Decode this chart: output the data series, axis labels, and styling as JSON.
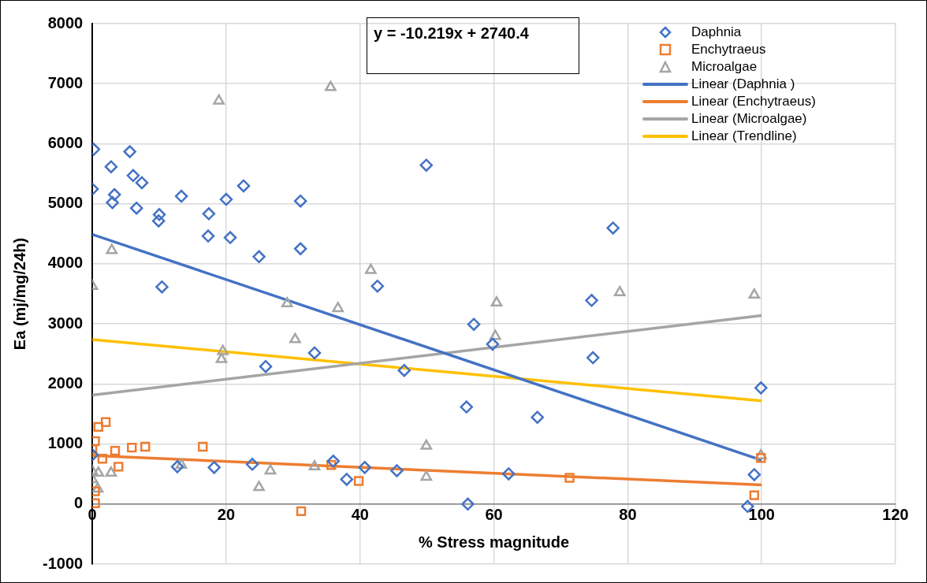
{
  "chart_data": {
    "type": "scatter",
    "xlabel": "% Stress magnitude",
    "ylabel": "Ea (mj/mg/24h)",
    "xlim": [
      0,
      120
    ],
    "xticks": [
      0,
      20,
      40,
      60,
      80,
      100,
      120
    ],
    "ylim": [
      -1000,
      8000
    ],
    "yticks": [
      -1000,
      0,
      1000,
      2000,
      3000,
      4000,
      5000,
      6000,
      7000,
      8000
    ],
    "grid": true,
    "legend": "top right",
    "annotations": [
      "y = -10.219x + 2740.4"
    ],
    "series": [
      {
        "name": "Daphnia",
        "marker": "diamond",
        "color": "#4472c4",
        "x": [
          0.2,
          0,
          2.8,
          3.3,
          3,
          5.6,
          6.1,
          7.4,
          6.6,
          10,
          9.9,
          10.4,
          13.3,
          17.4,
          17.3,
          20,
          20.6,
          22.6,
          24.9,
          31.1,
          31.1,
          25.9,
          33.2,
          49.9,
          42.6,
          46.6,
          57,
          59.8,
          55.9,
          66.5,
          62.2,
          56.1,
          45.5,
          40.7,
          38,
          36,
          12.7,
          18.2,
          23.9,
          0,
          77.8,
          74.6,
          74.8,
          99.9,
          98.9,
          97.9
        ],
        "values": [
          5907,
          5245,
          5616,
          5152,
          5020,
          5868,
          5470,
          5351,
          4927,
          4821,
          4715,
          3616,
          5126,
          4834,
          4464,
          5073,
          4437,
          5298,
          4119,
          5046,
          4251,
          2291,
          2517,
          5642,
          3629,
          2225,
          2993,
          2662,
          1616,
          1444,
          503,
          0,
          556,
          609,
          411,
          715,
          622,
          609,
          662,
          820,
          4596,
          3391,
          2437,
          1934,
          490,
          -40
        ]
      },
      {
        "name": "Enchytraeus",
        "marker": "square",
        "color": "#ed7d31",
        "x": [
          0.9,
          2,
          0.4,
          0,
          3.4,
          5.9,
          7.9,
          16.5,
          1.5,
          3.9,
          0.4,
          0.4,
          31.2,
          35.7,
          39.8,
          71.3,
          99.9,
          98.9
        ],
        "values": [
          1285,
          1364,
          1046,
          914,
          887,
          940,
          954,
          954,
          755,
          622,
          212,
          13,
          -119,
          649,
          384,
          437,
          768,
          146
        ]
      },
      {
        "name": "Microalgae",
        "marker": "triangle",
        "color": "#a5a5a5",
        "x": [
          0,
          2.9,
          18.9,
          35.6,
          41.6,
          36.7,
          30.3,
          60.4,
          60.2,
          49.9,
          49.9,
          33.2,
          19.5,
          19.3,
          29.1,
          13.3,
          26.6,
          24.9,
          0,
          0.9,
          2.8,
          0,
          0.8,
          78.8,
          98.9,
          99.9
        ],
        "values": [
          3629,
          4225,
          6715,
          6940,
          3894,
          3258,
          2742,
          3351,
          2795,
          967,
          450,
          622,
          2543,
          2411,
          3338,
          649,
          556,
          278,
          543,
          517,
          517,
          411,
          252,
          3523,
          3483,
          808
        ]
      },
      {
        "name": "Linear (Daphnia )",
        "type": "line",
        "marker": "none",
        "color": "#4472c4",
        "x": [
          0,
          100
        ],
        "values": [
          4490,
          730
        ]
      },
      {
        "name": "Linear (Enchytraeus)",
        "type": "line",
        "marker": "none",
        "color": "#ed7d31",
        "x": [
          0,
          100
        ],
        "values": [
          808,
          318
        ]
      },
      {
        "name": "Linear (Microalgae)",
        "type": "line",
        "marker": "none",
        "color": "#a5a5a5",
        "x": [
          0,
          100
        ],
        "values": [
          1815,
          3139
        ]
      },
      {
        "name": "Linear (Trendline)",
        "type": "line",
        "marker": "none",
        "color": "#ffc000",
        "x": [
          0,
          100
        ],
        "values": [
          2740.4,
          1718.5
        ]
      }
    ]
  }
}
